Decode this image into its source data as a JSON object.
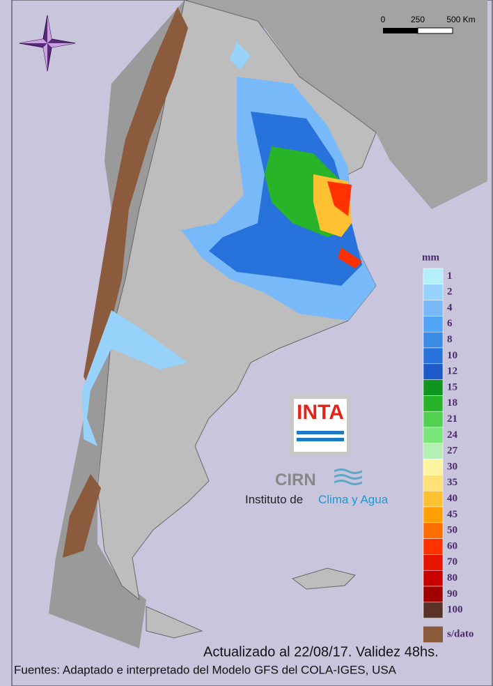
{
  "scale_bar": {
    "labels": [
      "0",
      "250",
      "500 Km"
    ]
  },
  "logo": {
    "inta": "INTA",
    "cirn": "CIRN",
    "institute_prefix": "Instituto de",
    "institute_name": "Clima y Agua"
  },
  "legend": {
    "unit": "mm",
    "items": [
      {
        "label": 1,
        "color": "#b4f0fa"
      },
      {
        "label": 2,
        "color": "#96d2fa"
      },
      {
        "label": 4,
        "color": "#78b9fa"
      },
      {
        "label": 6,
        "color": "#50a5f5"
      },
      {
        "label": 8,
        "color": "#3c8ce6"
      },
      {
        "label": 10,
        "color": "#2872dc"
      },
      {
        "label": 12,
        "color": "#1e5ac8"
      },
      {
        "label": 15,
        "color": "#0f961e"
      },
      {
        "label": 18,
        "color": "#28b428"
      },
      {
        "label": 21,
        "color": "#50d250"
      },
      {
        "label": 24,
        "color": "#78e678"
      },
      {
        "label": 27,
        "color": "#b4f0b4"
      },
      {
        "label": 30,
        "color": "#fff5a0"
      },
      {
        "label": 35,
        "color": "#ffe178"
      },
      {
        "label": 40,
        "color": "#ffc032"
      },
      {
        "label": 45,
        "color": "#ffa000"
      },
      {
        "label": 50,
        "color": "#ff6e00"
      },
      {
        "label": 60,
        "color": "#ff3200"
      },
      {
        "label": 70,
        "color": "#e61400"
      },
      {
        "label": 80,
        "color": "#c80000"
      },
      {
        "label": 90,
        "color": "#a00000"
      },
      {
        "label": 100,
        "color": "#5a3228"
      }
    ],
    "no_data": {
      "label": "s/dato",
      "color": "#8c5a3c"
    }
  },
  "footer": {
    "updated": "Actualizado al 22/08/17. Validez 48hs.",
    "sources": "Fuentes: Adaptado e interpretado del Modelo GFS del COLA-IGES, USA"
  }
}
